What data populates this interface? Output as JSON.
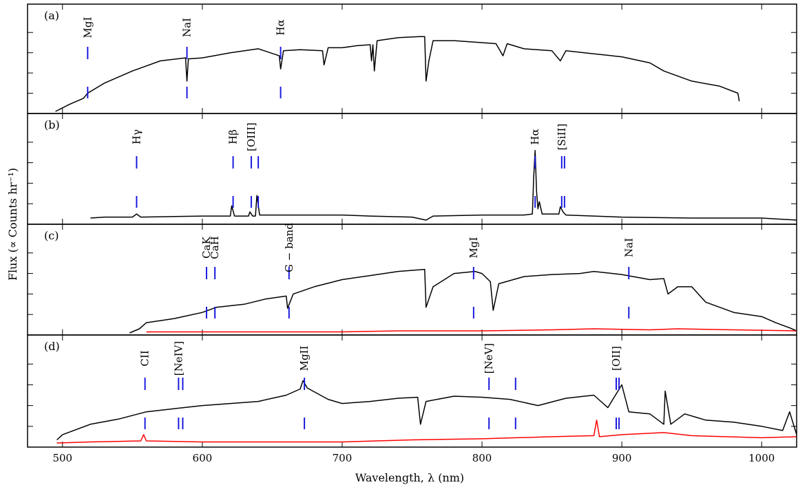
{
  "figure": {
    "ylabel": "Flux (∝ Counts hr⁻¹)",
    "xlabel": "Wavelength, λ (nm)"
  },
  "chart_data": {
    "type": "line",
    "x_range": [
      475,
      1025
    ],
    "x_ticks": [
      500,
      600,
      700,
      800,
      900,
      1000
    ],
    "shared_x_axis": true,
    "grid": false,
    "panels": [
      {
        "label": "(a)",
        "ylim": [
          0,
          1
        ],
        "series": [
          {
            "color": "#000000",
            "points": [
              [
                495,
                0.0
              ],
              [
                505,
                0.07
              ],
              [
                515,
                0.13
              ],
              [
                518,
                0.18
              ],
              [
                530,
                0.28
              ],
              [
                550,
                0.4
              ],
              [
                570,
                0.5
              ],
              [
                588,
                0.53
              ],
              [
                589,
                0.3
              ],
              [
                590,
                0.52
              ],
              [
                600,
                0.53
              ],
              [
                620,
                0.58
              ],
              [
                640,
                0.62
              ],
              [
                655,
                0.55
              ],
              [
                656,
                0.42
              ],
              [
                658,
                0.6
              ],
              [
                670,
                0.61
              ],
              [
                686,
                0.6
              ],
              [
                687,
                0.46
              ],
              [
                690,
                0.63
              ],
              [
                700,
                0.63
              ],
              [
                710,
                0.65
              ],
              [
                720,
                0.66
              ],
              [
                721,
                0.5
              ],
              [
                722,
                0.66
              ],
              [
                723,
                0.4
              ],
              [
                725,
                0.7
              ],
              [
                740,
                0.73
              ],
              [
                755,
                0.74
              ],
              [
                759,
                0.74
              ],
              [
                760,
                0.3
              ],
              [
                762,
                0.5
              ],
              [
                765,
                0.7
              ],
              [
                780,
                0.7
              ],
              [
                800,
                0.68
              ],
              [
                810,
                0.67
              ],
              [
                815,
                0.55
              ],
              [
                818,
                0.67
              ],
              [
                830,
                0.62
              ],
              [
                850,
                0.6
              ],
              [
                856,
                0.5
              ],
              [
                860,
                0.6
              ],
              [
                880,
                0.57
              ],
              [
                900,
                0.54
              ],
              [
                920,
                0.48
              ],
              [
                930,
                0.4
              ],
              [
                950,
                0.3
              ],
              [
                970,
                0.25
              ],
              [
                983,
                0.18
              ],
              [
                984,
                0.1
              ]
            ]
          }
        ],
        "markers": [
          {
            "label": "MgI",
            "x": 518
          },
          {
            "label": "NaI",
            "x": 589
          },
          {
            "label": "Hα",
            "x": 656
          }
        ]
      },
      {
        "label": "(b)",
        "ylim": [
          0,
          1
        ],
        "series": [
          {
            "color": "#000000",
            "points": [
              [
                520,
                0.04
              ],
              [
                530,
                0.05
              ],
              [
                550,
                0.05
              ],
              [
                553,
                0.08
              ],
              [
                556,
                0.05
              ],
              [
                600,
                0.06
              ],
              [
                620,
                0.06
              ],
              [
                621,
                0.16
              ],
              [
                623,
                0.06
              ],
              [
                633,
                0.06
              ],
              [
                634,
                0.1
              ],
              [
                636,
                0.06
              ],
              [
                638,
                0.06
              ],
              [
                639,
                0.26
              ],
              [
                641,
                0.07
              ],
              [
                680,
                0.07
              ],
              [
                700,
                0.07
              ],
              [
                720,
                0.06
              ],
              [
                750,
                0.05
              ],
              [
                760,
                0.02
              ],
              [
                765,
                0.06
              ],
              [
                800,
                0.07
              ],
              [
                830,
                0.07
              ],
              [
                836,
                0.08
              ],
              [
                837,
                0.45
              ],
              [
                838,
                0.7
              ],
              [
                839,
                0.3
              ],
              [
                840,
                0.13
              ],
              [
                841,
                0.2
              ],
              [
                843,
                0.08
              ],
              [
                855,
                0.08
              ],
              [
                856,
                0.15
              ],
              [
                858,
                0.1
              ],
              [
                860,
                0.07
              ],
              [
                900,
                0.05
              ],
              [
                950,
                0.04
              ],
              [
                1000,
                0.04
              ],
              [
                1025,
                0.02
              ]
            ]
          }
        ],
        "markers": [
          {
            "label": "Hγ",
            "x": 553
          },
          {
            "label": "Hβ",
            "x": 622
          },
          {
            "label": "[OIII]",
            "x": 635
          },
          {
            "label": "[OIII]",
            "x": 640
          },
          {
            "label": "Hα",
            "x": 838
          },
          {
            "label": "[SiII]",
            "x": 857
          },
          {
            "label": "[SiII]",
            "x": 859
          }
        ]
      },
      {
        "label": "(c)",
        "ylim": [
          0,
          1
        ],
        "series": [
          {
            "color": "#000000",
            "points": [
              [
                548,
                0.0
              ],
              [
                555,
                0.04
              ],
              [
                560,
                0.1
              ],
              [
                580,
                0.14
              ],
              [
                600,
                0.2
              ],
              [
                610,
                0.25
              ],
              [
                630,
                0.28
              ],
              [
                645,
                0.33
              ],
              [
                660,
                0.36
              ],
              [
                661,
                0.24
              ],
              [
                665,
                0.38
              ],
              [
                680,
                0.45
              ],
              [
                700,
                0.52
              ],
              [
                720,
                0.56
              ],
              [
                740,
                0.6
              ],
              [
                759,
                0.62
              ],
              [
                760,
                0.25
              ],
              [
                765,
                0.45
              ],
              [
                780,
                0.58
              ],
              [
                795,
                0.6
              ],
              [
                800,
                0.58
              ],
              [
                806,
                0.5
              ],
              [
                808,
                0.22
              ],
              [
                812,
                0.48
              ],
              [
                830,
                0.55
              ],
              [
                850,
                0.57
              ],
              [
                870,
                0.58
              ],
              [
                880,
                0.6
              ],
              [
                900,
                0.57
              ],
              [
                920,
                0.52
              ],
              [
                930,
                0.53
              ],
              [
                933,
                0.38
              ],
              [
                940,
                0.45
              ],
              [
                950,
                0.45
              ],
              [
                960,
                0.3
              ],
              [
                980,
                0.2
              ],
              [
                1000,
                0.16
              ],
              [
                1010,
                0.1
              ],
              [
                1020,
                0.05
              ],
              [
                1025,
                0.02
              ]
            ]
          },
          {
            "color": "#ff0000",
            "points": [
              [
                560,
                0.01
              ],
              [
                600,
                0.01
              ],
              [
                700,
                0.01
              ],
              [
                740,
                0.02
              ],
              [
                800,
                0.02
              ],
              [
                850,
                0.03
              ],
              [
                880,
                0.04
              ],
              [
                920,
                0.03
              ],
              [
                940,
                0.04
              ],
              [
                980,
                0.03
              ],
              [
                1025,
                0.02
              ]
            ]
          }
        ],
        "markers": [
          {
            "label": "CaK",
            "x": 603
          },
          {
            "label": "CaH",
            "x": 609
          },
          {
            "label": "G − band",
            "x": 662
          },
          {
            "label": "MgI",
            "x": 794
          },
          {
            "label": "NaI",
            "x": 905
          }
        ]
      },
      {
        "label": "(d)",
        "ylim": [
          0,
          1
        ],
        "series": [
          {
            "color": "#000000",
            "points": [
              [
                496,
                0.05
              ],
              [
                500,
                0.1
              ],
              [
                520,
                0.2
              ],
              [
                540,
                0.25
              ],
              [
                560,
                0.32
              ],
              [
                580,
                0.35
              ],
              [
                600,
                0.38
              ],
              [
                620,
                0.4
              ],
              [
                640,
                0.42
              ],
              [
                660,
                0.48
              ],
              [
                670,
                0.54
              ],
              [
                672,
                0.62
              ],
              [
                675,
                0.55
              ],
              [
                690,
                0.44
              ],
              [
                700,
                0.4
              ],
              [
                720,
                0.42
              ],
              [
                740,
                0.45
              ],
              [
                754,
                0.46
              ],
              [
                756,
                0.2
              ],
              [
                760,
                0.42
              ],
              [
                780,
                0.47
              ],
              [
                800,
                0.46
              ],
              [
                820,
                0.44
              ],
              [
                840,
                0.38
              ],
              [
                860,
                0.45
              ],
              [
                880,
                0.48
              ],
              [
                890,
                0.36
              ],
              [
                900,
                0.58
              ],
              [
                905,
                0.32
              ],
              [
                920,
                0.3
              ],
              [
                930,
                0.2
              ],
              [
                931,
                0.52
              ],
              [
                935,
                0.2
              ],
              [
                945,
                0.3
              ],
              [
                960,
                0.24
              ],
              [
                980,
                0.22
              ],
              [
                1000,
                0.18
              ],
              [
                1015,
                0.14
              ],
              [
                1020,
                0.32
              ],
              [
                1025,
                0.1
              ]
            ]
          },
          {
            "color": "#ff0000",
            "points": [
              [
                496,
                0.02
              ],
              [
                520,
                0.03
              ],
              [
                556,
                0.04
              ],
              [
                558,
                0.1
              ],
              [
                560,
                0.04
              ],
              [
                600,
                0.03
              ],
              [
                700,
                0.03
              ],
              [
                750,
                0.05
              ],
              [
                800,
                0.06
              ],
              [
                850,
                0.08
              ],
              [
                880,
                0.09
              ],
              [
                882,
                0.24
              ],
              [
                884,
                0.08
              ],
              [
                900,
                0.1
              ],
              [
                930,
                0.12
              ],
              [
                950,
                0.09
              ],
              [
                1000,
                0.07
              ],
              [
                1025,
                0.08
              ]
            ]
          }
        ],
        "markers": [
          {
            "label": "CII",
            "x": 559
          },
          {
            "label": "[NeIV]",
            "x": 583
          },
          {
            "label": "[NeIV]",
            "x": 586
          },
          {
            "label": "MgII",
            "x": 673
          },
          {
            "label": "[NeV]",
            "x": 805
          },
          {
            "label": "[NeV]",
            "x": 824
          },
          {
            "label": "[OII]",
            "x": 896
          },
          {
            "label": "[OII]",
            "x": 898
          }
        ]
      }
    ]
  },
  "colors": {
    "line": "#000000",
    "residual": "#ff0000",
    "marker": "#1a1adf"
  }
}
